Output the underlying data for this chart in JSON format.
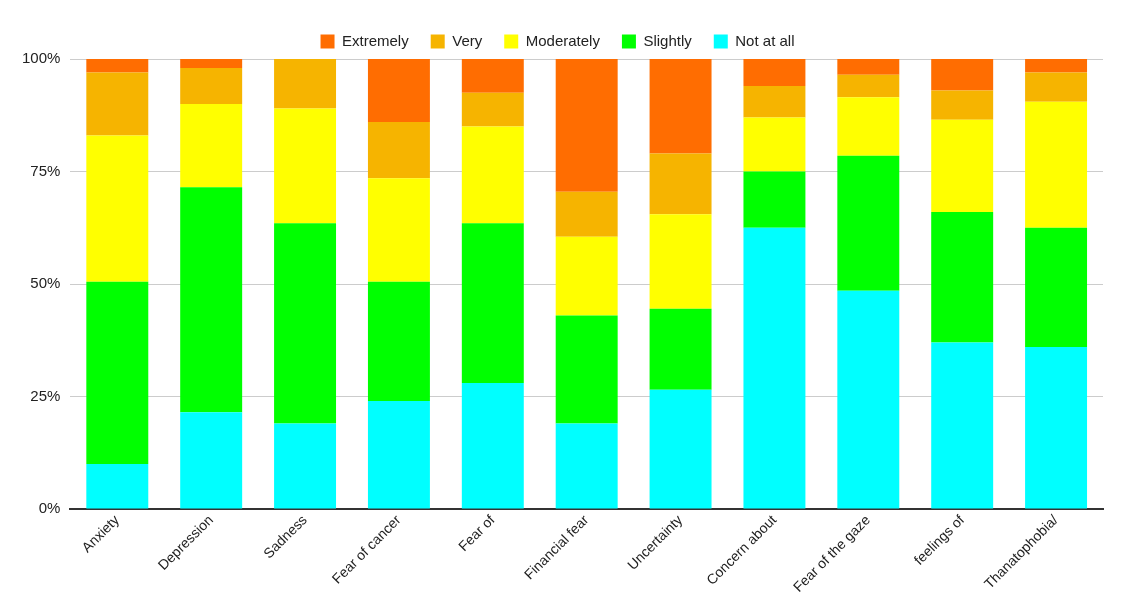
{
  "chart_data": {
    "type": "bar",
    "stacked": true,
    "categories": [
      "Anxiety",
      "Depression",
      "Sadness",
      "Fear of cancer",
      "Fear of",
      "Financial fear",
      "Uncertainty",
      "Concern about",
      "Fear of the gaze",
      "feelings of",
      "Thanatophobia/"
    ],
    "series": [
      {
        "name": "Not at all",
        "color": "#00ffff",
        "values": [
          10,
          21.5,
          19,
          24,
          28,
          19,
          26.5,
          62.5,
          48.5,
          37,
          36
        ]
      },
      {
        "name": "Slightly",
        "color": "#00ff00",
        "values": [
          40.5,
          50,
          44.5,
          26.5,
          35.5,
          24,
          18,
          12.5,
          30,
          29,
          26.5
        ]
      },
      {
        "name": "Moderately",
        "color": "#ffff00",
        "values": [
          32.5,
          18.5,
          25.5,
          23,
          21.5,
          17.5,
          21,
          12,
          13,
          20.5,
          28
        ]
      },
      {
        "name": "Very",
        "color": "#f6b400",
        "values": [
          14,
          8,
          11,
          12.5,
          7.5,
          10,
          13.5,
          7,
          5,
          6.5,
          6.5
        ]
      },
      {
        "name": "Extremely",
        "color": "#ff6d01",
        "values": [
          3,
          2,
          0,
          14,
          7.5,
          29.5,
          21,
          6,
          3.5,
          7,
          3
        ]
      }
    ],
    "ylim": [
      0,
      100
    ],
    "yticks": [
      {
        "value": 0,
        "label": "0%"
      },
      {
        "value": 25,
        "label": "25%"
      },
      {
        "value": 50,
        "label": "50%"
      },
      {
        "value": 75,
        "label": "75%"
      },
      {
        "value": 100,
        "label": "100%"
      }
    ],
    "grid": "y",
    "legend": "top"
  }
}
